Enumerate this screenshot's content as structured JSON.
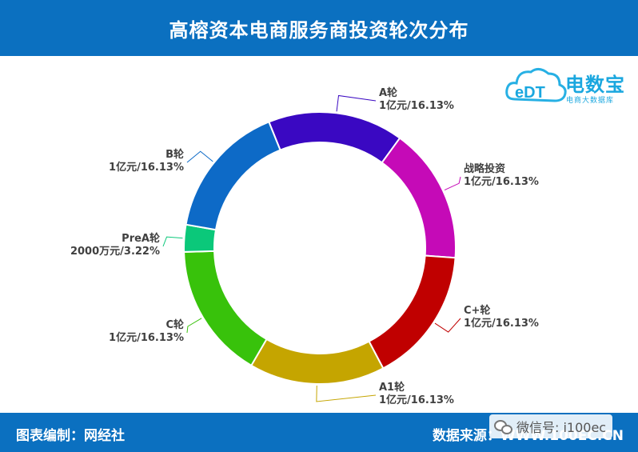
{
  "header": {
    "title": "高榕资本电商服务商投资轮次分布"
  },
  "footer": {
    "left": "图表编制：网经社",
    "right": "数据来源：WWW.100EC.CN"
  },
  "watermark": {
    "text": "微信号: i100ec",
    "icon": "wechat-icon"
  },
  "logo": {
    "name": "电数宝",
    "sub": "电商大数据库",
    "mark": "eDT"
  },
  "chart_data": {
    "type": "pie",
    "donut": true,
    "title": "高榕资本电商服务商投资轮次分布",
    "slices": [
      {
        "name": "A轮",
        "label": "1亿元/16.13%",
        "value": 16.13,
        "color": "#3a08c2"
      },
      {
        "name": "战略投资",
        "label": "1亿元/16.13%",
        "value": 16.13,
        "color": "#c50ab7"
      },
      {
        "name": "C+轮",
        "label": "1亿元/16.13%",
        "value": 16.13,
        "color": "#c00000"
      },
      {
        "name": "A1轮",
        "label": "1亿元/16.13%",
        "value": 16.13,
        "color": "#c5a500"
      },
      {
        "name": "C轮",
        "label": "1亿元/16.13%",
        "value": 16.13,
        "color": "#38c20b"
      },
      {
        "name": "PreA轮",
        "label": "2000万元/3.22%",
        "value": 3.22,
        "color": "#0bc87a"
      },
      {
        "name": "B轮",
        "label": "1亿元/16.13%",
        "value": 16.13,
        "color": "#0d6ac7"
      }
    ]
  }
}
